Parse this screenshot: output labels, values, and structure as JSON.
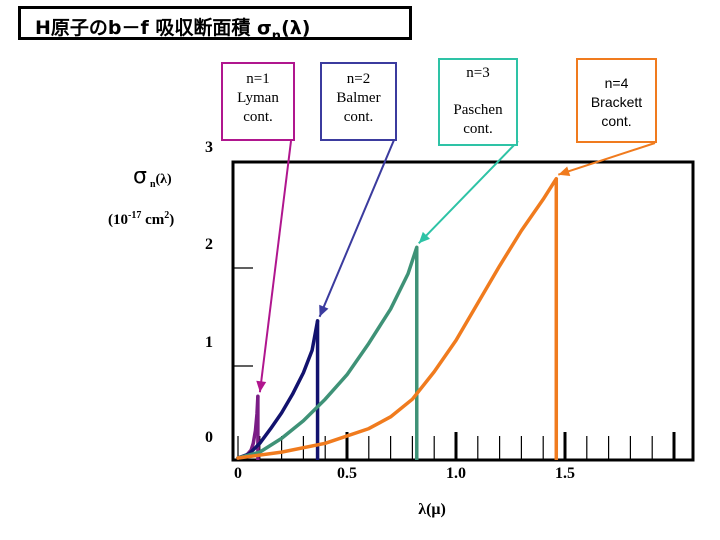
{
  "title": {
    "main": "H原子のb－f 吸収断面積 σ",
    "sub": "n",
    "suffix": "(λ)"
  },
  "ylabel": {
    "sigma": "σ",
    "sub": "n",
    "paren": "(λ)",
    "unit_pre": "(10",
    "unit_exp": "-17",
    "unit_mid": " cm",
    "unit_sq": "2",
    "unit_post": ")"
  },
  "xlabel": "λ(μ)",
  "colors": {
    "lyman": "#b0168e",
    "balmer": "#3b3b9e",
    "paschen": "#2ec3a6",
    "brackett": "#f07b1e",
    "curve_lyman": "#7a1d86",
    "curve_balmer": "#12126e",
    "curve_paschen": "#3f9277",
    "curve_brackett": "#f07b1e"
  },
  "callouts": [
    {
      "id": "lyman",
      "line1": "n=1",
      "line2": "Lyman",
      "line3": "cont."
    },
    {
      "id": "balmer",
      "line1": "n=2",
      "line2": "Balmer",
      "line3": "cont."
    },
    {
      "id": "paschen",
      "line1": "n=3",
      "line2": "Paschen",
      "line3": "cont."
    },
    {
      "id": "brackett",
      "line1": "n=4",
      "line2": "Brackett",
      "line3": "cont."
    }
  ],
  "chart_data": {
    "type": "line",
    "xlabel": "λ(μ)",
    "ylabel": "σn(λ) (10-17 cm2)",
    "xlim": [
      0,
      2.0
    ],
    "ylim": [
      0,
      3.0
    ],
    "x_ticks": [
      {
        "value": 0,
        "label": "0"
      },
      {
        "value": 0.5,
        "label": "0.5"
      },
      {
        "value": 1.0,
        "label": "1.0"
      },
      {
        "value": 1.5,
        "label": "1.5"
      }
    ],
    "y_ticks": [
      {
        "value": 0,
        "label": "0"
      },
      {
        "value": 1,
        "label": "1"
      },
      {
        "value": 2,
        "label": "2"
      },
      {
        "value": 3,
        "label": "3"
      }
    ],
    "series": [
      {
        "key": "lyman",
        "edge": 0.0912,
        "peak": 0.63,
        "points": [
          [
            0.0,
            0.0
          ],
          [
            0.04,
            0.03
          ],
          [
            0.06,
            0.08
          ],
          [
            0.07,
            0.15
          ],
          [
            0.08,
            0.28
          ],
          [
            0.087,
            0.45
          ],
          [
            0.0912,
            0.63
          ]
        ]
      },
      {
        "key": "balmer",
        "edge": 0.365,
        "peak": 1.4,
        "points": [
          [
            0.0,
            0.0
          ],
          [
            0.05,
            0.04
          ],
          [
            0.1,
            0.15
          ],
          [
            0.15,
            0.3
          ],
          [
            0.2,
            0.46
          ],
          [
            0.25,
            0.65
          ],
          [
            0.3,
            0.87
          ],
          [
            0.34,
            1.1
          ],
          [
            0.365,
            1.4
          ]
        ]
      },
      {
        "key": "paschen",
        "edge": 0.82,
        "peak": 2.15,
        "points": [
          [
            0.0,
            0.0
          ],
          [
            0.1,
            0.06
          ],
          [
            0.2,
            0.2
          ],
          [
            0.3,
            0.38
          ],
          [
            0.4,
            0.6
          ],
          [
            0.5,
            0.85
          ],
          [
            0.6,
            1.17
          ],
          [
            0.7,
            1.52
          ],
          [
            0.78,
            1.88
          ],
          [
            0.82,
            2.15
          ]
        ]
      },
      {
        "key": "brackett",
        "edge": 1.46,
        "peak": 2.85,
        "points": [
          [
            0.0,
            0.0
          ],
          [
            0.2,
            0.06
          ],
          [
            0.4,
            0.15
          ],
          [
            0.6,
            0.3
          ],
          [
            0.7,
            0.42
          ],
          [
            0.8,
            0.6
          ],
          [
            0.9,
            0.88
          ],
          [
            1.0,
            1.2
          ],
          [
            1.1,
            1.58
          ],
          [
            1.2,
            1.96
          ],
          [
            1.3,
            2.32
          ],
          [
            1.4,
            2.64
          ],
          [
            1.46,
            2.85
          ]
        ]
      }
    ]
  }
}
